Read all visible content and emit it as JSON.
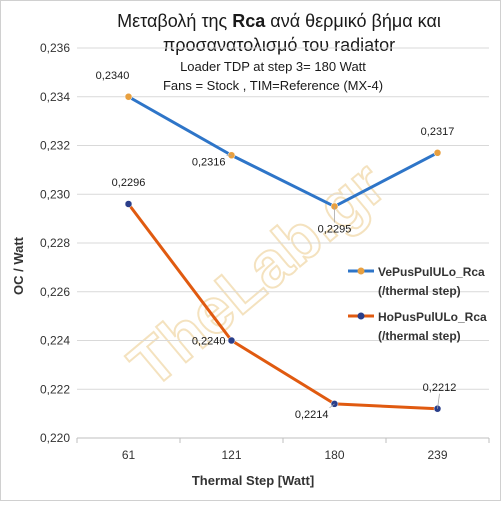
{
  "chart_data": {
    "type": "line",
    "title_prefix": "Μεταβολή της ",
    "title_bold": "Rca",
    "title_suffix": " ανά θερμικό βήμα και",
    "title_line2": "προσανατολισμό του radiator",
    "subtitle_line1": "Loader TDP at step 3= 180 Watt",
    "subtitle_line2": "Fans = Stock ,  TIM=Reference (MX-4)",
    "xlabel": "Thermal Step [Watt]",
    "ylabel": "OC / Watt",
    "categories": [
      "61",
      "121",
      "180",
      "239"
    ],
    "ylim": [
      0.22,
      0.236
    ],
    "yticks": [
      "0,220",
      "0,222",
      "0,224",
      "0,226",
      "0,228",
      "0,230",
      "0,232",
      "0,234",
      "0,236"
    ],
    "grid": true,
    "legend_position": "right",
    "watermark": "TheLab.gr",
    "series": [
      {
        "name_line1": "VePusPulULo_Rca",
        "name_line2": "(/thermal step)",
        "color": "#2e75c8",
        "marker_color": "#e8a040",
        "values": [
          0.234,
          0.2316,
          0.2295,
          0.2317
        ],
        "labels": [
          "0,2340",
          "0,2316",
          "0,2295",
          "0,2317"
        ]
      },
      {
        "name_line1": "HoPusPulULo_Rca",
        "name_line2": "(/thermal step)",
        "color": "#e05a10",
        "marker_color": "#2a3e8a",
        "values": [
          0.2296,
          0.224,
          0.2214,
          0.2212
        ],
        "labels": [
          "0,2296",
          "0,2240",
          "0,2214",
          "0,2212"
        ]
      }
    ]
  }
}
